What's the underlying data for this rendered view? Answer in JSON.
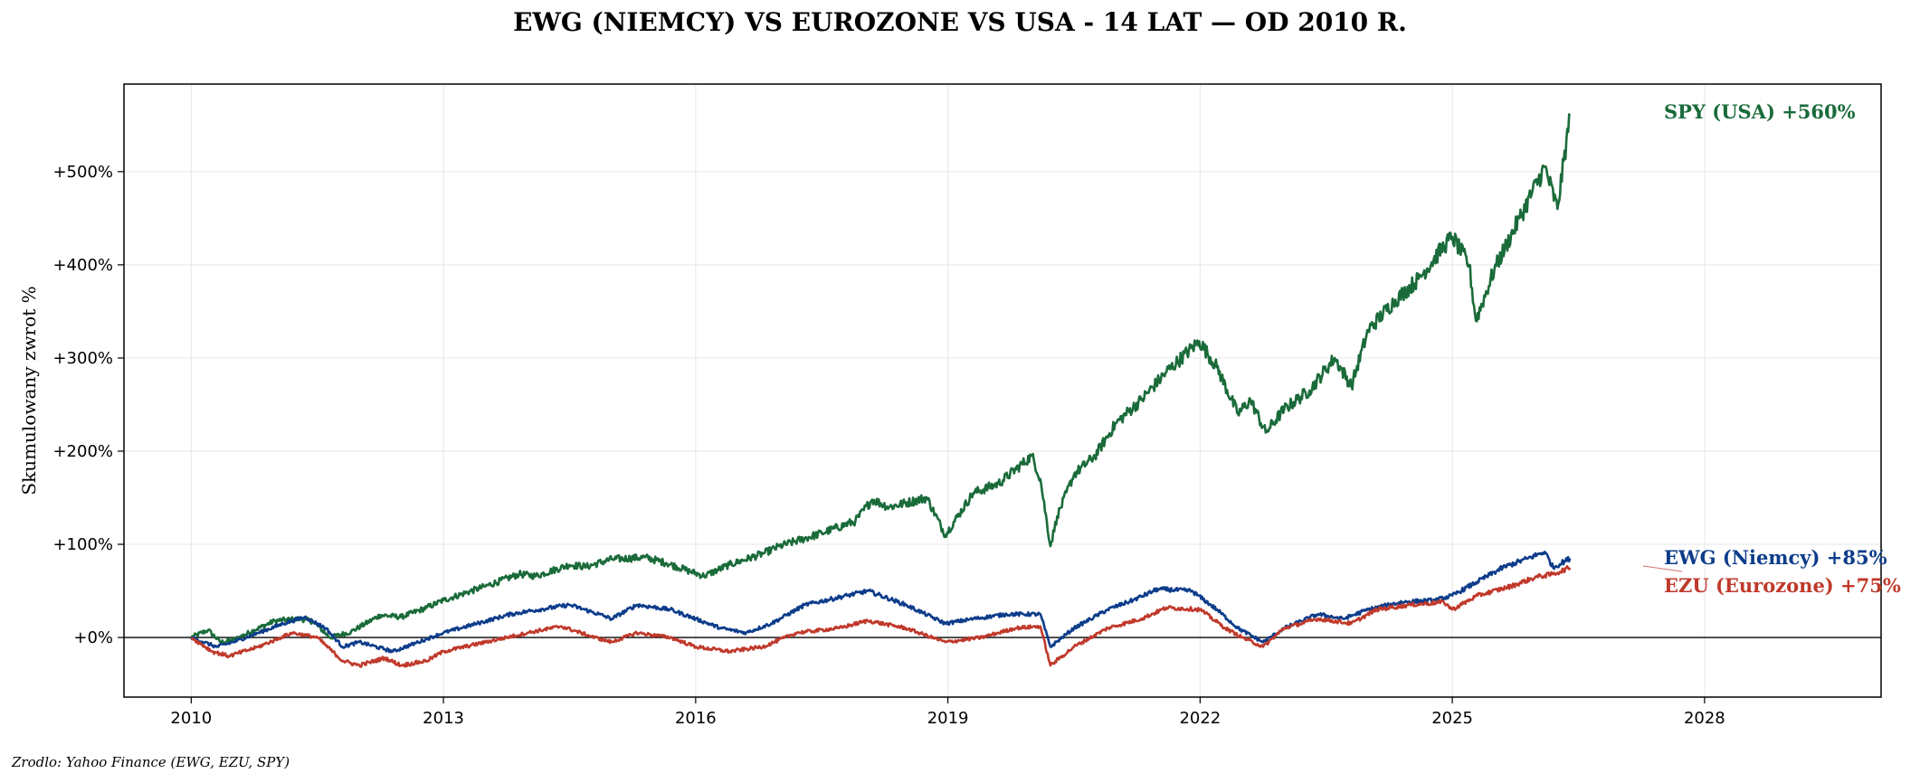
{
  "title": "EWG (NIEMCY) VS EUROZONE VS USA - 14 LAT — OD 2010 R.",
  "source": "Zrodlo: Yahoo Finance (EWG, EZU, SPY)",
  "chart_data": {
    "type": "line",
    "title": "EWG (NIEMCY) VS EUROZONE VS USA - 14 LAT — OD 2010 R.",
    "xlabel": "",
    "ylabel": "Skumulowany zwrot %",
    "xlim": [
      2009.2,
      2030.1
    ],
    "ylim": [
      -64,
      594
    ],
    "xticks": [
      2010,
      2013,
      2016,
      2019,
      2022,
      2025,
      2028
    ],
    "xtick_labels": [
      "2010",
      "2013",
      "2016",
      "2019",
      "2022",
      "2025",
      "2028"
    ],
    "yticks": [
      0,
      100,
      200,
      300,
      400,
      500
    ],
    "ytick_labels": [
      "+0%",
      "+100%",
      "+200%",
      "+300%",
      "+400%",
      "+500%"
    ],
    "grid": true,
    "zero_line": true,
    "series": [
      {
        "name": "SPY (USA)",
        "color": "#1a6b3a",
        "end_label": "SPY (USA)  +560%",
        "x": [
          2010.0,
          2010.2,
          2010.35,
          2010.5,
          2010.75,
          2011.0,
          2011.3,
          2011.45,
          2011.65,
          2011.9,
          2012.25,
          2012.5,
          2012.8,
          2013.0,
          2013.5,
          2013.9,
          2014.1,
          2014.5,
          2014.7,
          2015.0,
          2015.4,
          2015.65,
          2015.9,
          2016.1,
          2016.4,
          2016.8,
          2017.0,
          2017.5,
          2017.9,
          2018.1,
          2018.3,
          2018.75,
          2018.97,
          2019.3,
          2019.6,
          2020.0,
          2020.1,
          2020.22,
          2020.3,
          2020.5,
          2020.75,
          2021.0,
          2021.3,
          2021.6,
          2021.99,
          2022.2,
          2022.45,
          2022.6,
          2022.78,
          2023.0,
          2023.3,
          2023.6,
          2023.8,
          2024.0,
          2024.3,
          2024.6,
          2024.9,
          2025.0,
          2025.2,
          2025.28,
          2025.5,
          2025.8,
          2026.1,
          2026.25,
          2026.4
        ],
        "y": [
          0,
          8,
          -5,
          -3,
          8,
          18,
          20,
          17,
          0,
          6,
          24,
          22,
          32,
          40,
          55,
          68,
          66,
          78,
          76,
          84,
          86,
          80,
          72,
          66,
          78,
          90,
          98,
          112,
          125,
          148,
          140,
          150,
          110,
          155,
          165,
          195,
          170,
          98,
          130,
          175,
          195,
          230,
          255,
          285,
          318,
          290,
          240,
          255,
          220,
          245,
          265,
          300,
          270,
          330,
          360,
          385,
          420,
          430,
          400,
          340,
          395,
          450,
          505,
          460,
          560
        ]
      },
      {
        "name": "EWG (Niemcy)",
        "color": "#0d3c8a",
        "end_label": "EWG (Niemcy)  +85%",
        "x": [
          2010.0,
          2010.3,
          2010.5,
          2010.8,
          2011.1,
          2011.35,
          2011.6,
          2011.8,
          2012.0,
          2012.4,
          2012.7,
          2013.0,
          2013.4,
          2013.8,
          2014.0,
          2014.5,
          2014.85,
          2015.0,
          2015.3,
          2015.7,
          2016.0,
          2016.3,
          2016.6,
          2016.9,
          2017.3,
          2017.8,
          2018.05,
          2018.5,
          2018.97,
          2019.3,
          2019.7,
          2020.1,
          2020.22,
          2020.5,
          2020.9,
          2021.2,
          2021.5,
          2021.9,
          2022.2,
          2022.45,
          2022.75,
          2023.0,
          2023.4,
          2023.7,
          2024.0,
          2024.4,
          2024.8,
          2025.0,
          2025.3,
          2025.6,
          2025.9,
          2026.1,
          2026.2,
          2026.4
        ],
        "y": [
          0,
          -10,
          -5,
          5,
          15,
          22,
          10,
          -10,
          -5,
          -15,
          -5,
          5,
          15,
          25,
          28,
          35,
          25,
          20,
          35,
          30,
          20,
          10,
          5,
          15,
          35,
          45,
          50,
          35,
          15,
          20,
          25,
          25,
          -10,
          10,
          30,
          40,
          52,
          50,
          30,
          10,
          -5,
          10,
          25,
          20,
          30,
          38,
          40,
          45,
          60,
          75,
          85,
          92,
          75,
          85
        ]
      },
      {
        "name": "EZU (Eurozone)",
        "color": "#c0392b",
        "end_label": "EZU (Eurozone)  +75%",
        "x": [
          2010.0,
          2010.25,
          2010.45,
          2010.8,
          2011.2,
          2011.5,
          2011.8,
          2012.0,
          2012.3,
          2012.5,
          2012.8,
          2013.0,
          2013.5,
          2014.0,
          2014.4,
          2014.8,
          2015.0,
          2015.3,
          2015.7,
          2016.0,
          2016.4,
          2016.8,
          2017.2,
          2017.7,
          2018.05,
          2018.5,
          2018.97,
          2019.4,
          2019.8,
          2020.1,
          2020.22,
          2020.5,
          2020.9,
          2021.3,
          2021.6,
          2022.0,
          2022.3,
          2022.5,
          2022.75,
          2023.0,
          2023.4,
          2023.8,
          2024.1,
          2024.5,
          2024.9,
          2025.0,
          2025.3,
          2025.7,
          2026.0,
          2026.2,
          2026.4
        ],
        "y": [
          0,
          -15,
          -20,
          -10,
          5,
          0,
          -25,
          -30,
          -22,
          -30,
          -25,
          -15,
          -5,
          5,
          12,
          0,
          -5,
          5,
          0,
          -10,
          -15,
          -10,
          5,
          10,
          18,
          10,
          -5,
          0,
          10,
          12,
          -30,
          -10,
          10,
          20,
          32,
          30,
          10,
          0,
          -10,
          10,
          20,
          15,
          30,
          35,
          38,
          30,
          45,
          55,
          65,
          68,
          75
        ]
      }
    ]
  }
}
